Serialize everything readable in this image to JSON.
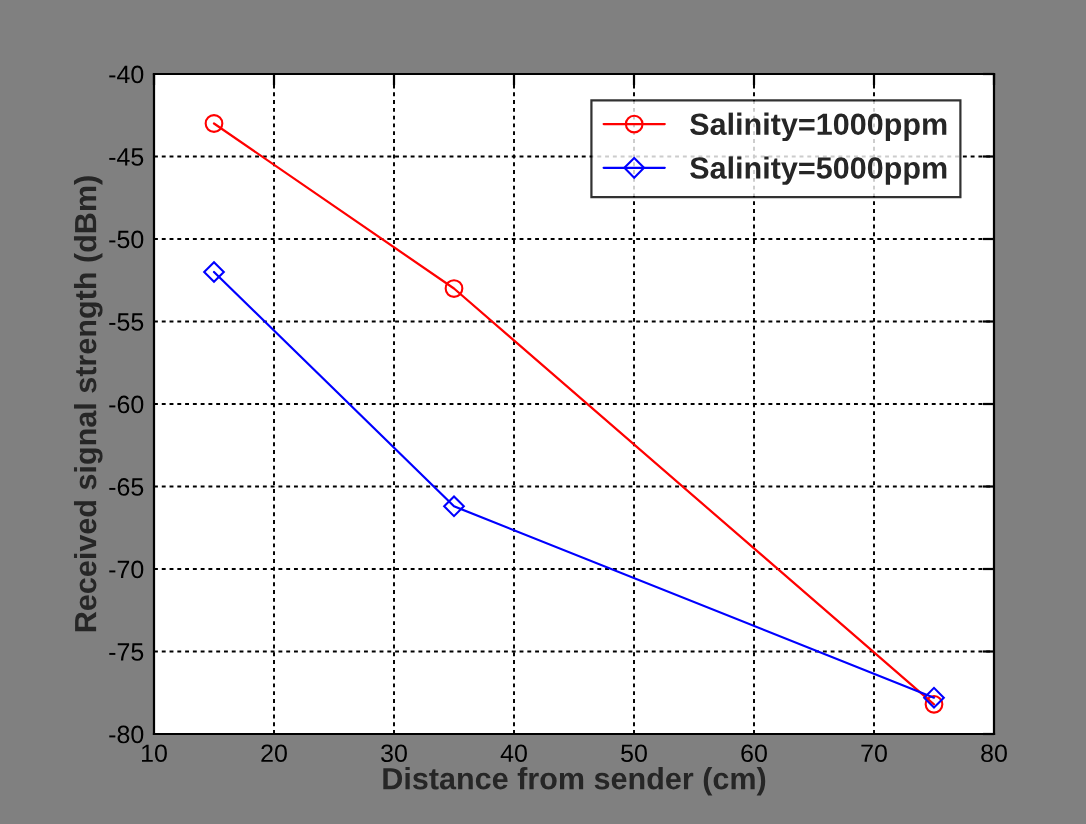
{
  "chart_data": {
    "type": "line",
    "xlabel": "Distance from sender (cm)",
    "ylabel": "Received signal strength (dBm)",
    "x": [
      15,
      35,
      75
    ],
    "series": [
      {
        "name": "Salinity=1000ppm",
        "color": "#ff0000",
        "marker": "circle",
        "values": [
          -43,
          -53,
          -78.2
        ]
      },
      {
        "name": "Salinity=5000ppm",
        "color": "#0000ff",
        "marker": "diamond",
        "values": [
          -52,
          -66.2,
          -77.8
        ]
      }
    ],
    "xlim": [
      10,
      80
    ],
    "xticks": [
      10,
      20,
      30,
      40,
      50,
      60,
      70,
      80
    ],
    "ylim": [
      -80,
      -40
    ],
    "yticks": [
      -80,
      -75,
      -70,
      -65,
      -60,
      -55,
      -50,
      -45,
      -40
    ],
    "grid": true,
    "legend": "top right",
    "line_style": "solid"
  }
}
